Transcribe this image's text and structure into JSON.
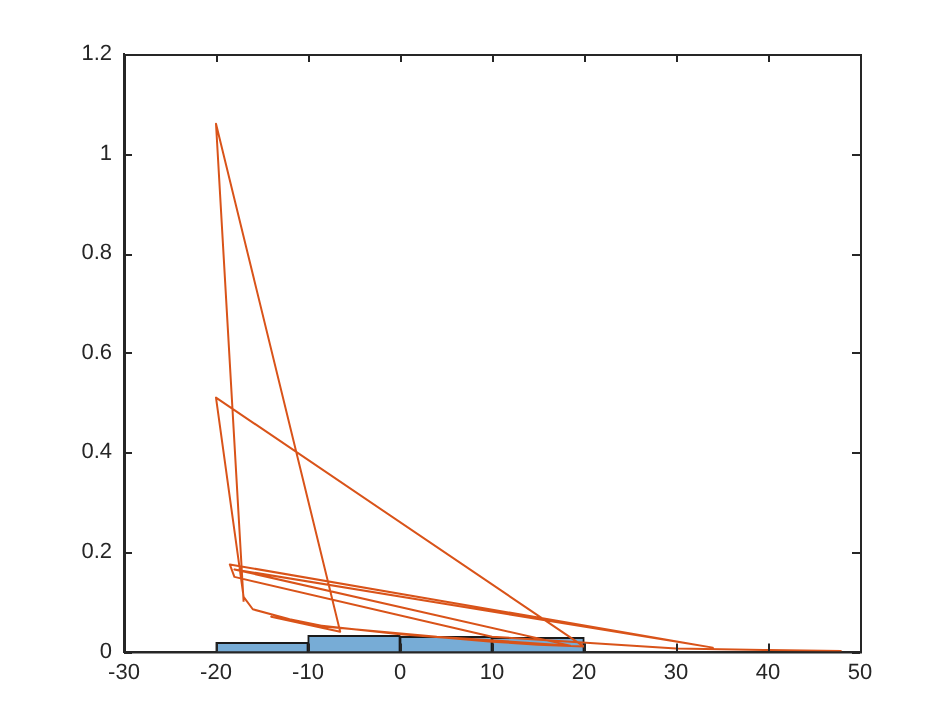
{
  "chart_data": {
    "type": "histogram",
    "bins": [
      -30,
      -20,
      -10,
      0,
      10,
      20,
      30,
      40,
      50
    ],
    "values": [
      null,
      0.018,
      0.032,
      0.03,
      0.028,
      null,
      null,
      null
    ],
    "color": "#77acd6",
    "series": [
      {
        "type": "line",
        "color": "#d95319",
        "x": [
          -17,
          -20,
          -6.5,
          -14,
          -10,
          -5,
          0,
          5,
          10,
          15,
          20,
          -20,
          -17,
          -16,
          -12,
          -8,
          -2,
          4,
          18.5,
          -18,
          34,
          -18.5,
          -18,
          10,
          30,
          40,
          48
        ],
        "values": [
          0.1,
          1.06,
          0.04,
          0.07,
          0.055,
          0.045,
          0.035,
          0.028,
          0.02,
          0.014,
          0.01,
          0.51,
          0.11,
          0.085,
          0.065,
          0.05,
          0.04,
          0.03,
          0.012,
          0.165,
          0.008,
          0.175,
          0.15,
          0.03,
          0.006,
          0.003,
          0.001
        ]
      }
    ],
    "xlim": [
      -30,
      50
    ],
    "xticks": [
      -30,
      -20,
      -10,
      0,
      10,
      20,
      30,
      40,
      50
    ],
    "ylim": [
      0,
      1.2
    ],
    "yticks": [
      0,
      0.2,
      0.4,
      0.6,
      0.8,
      1,
      1.2
    ],
    "grid": false
  }
}
